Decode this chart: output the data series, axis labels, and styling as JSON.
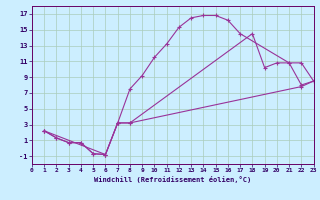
{
  "xlabel": "Windchill (Refroidissement éolien,°C)",
  "background_color": "#cceeff",
  "grid_color": "#aaccbb",
  "line_color": "#993399",
  "xlim": [
    0,
    23
  ],
  "ylim": [
    -2,
    18
  ],
  "xticks": [
    0,
    1,
    2,
    3,
    4,
    5,
    6,
    7,
    8,
    9,
    10,
    11,
    12,
    13,
    14,
    15,
    16,
    17,
    18,
    19,
    20,
    21,
    22,
    23
  ],
  "yticks": [
    -1,
    1,
    3,
    5,
    7,
    9,
    11,
    13,
    15,
    17
  ],
  "curve1_x": [
    1,
    2,
    3,
    4,
    5,
    6,
    7,
    8,
    9,
    10,
    11,
    12,
    13,
    14,
    15,
    16,
    17,
    21,
    22,
    23
  ],
  "curve1_y": [
    2.2,
    1.3,
    0.7,
    0.7,
    -0.7,
    -0.8,
    3.2,
    7.5,
    9.2,
    11.5,
    13.2,
    15.3,
    16.5,
    16.8,
    16.8,
    16.2,
    14.5,
    10.8,
    8.0,
    8.5
  ],
  "curve2_x": [
    1,
    2,
    3,
    4,
    5,
    6,
    7,
    8,
    22,
    23
  ],
  "curve2_y": [
    2.2,
    1.3,
    0.7,
    0.7,
    -0.7,
    -0.8,
    3.2,
    3.2,
    7.8,
    8.5
  ],
  "curve3_x": [
    1,
    6,
    7,
    8,
    18,
    19,
    20,
    21,
    22,
    23
  ],
  "curve3_y": [
    2.2,
    -0.8,
    3.2,
    3.2,
    14.5,
    10.2,
    10.8,
    10.8,
    10.8,
    8.5
  ]
}
